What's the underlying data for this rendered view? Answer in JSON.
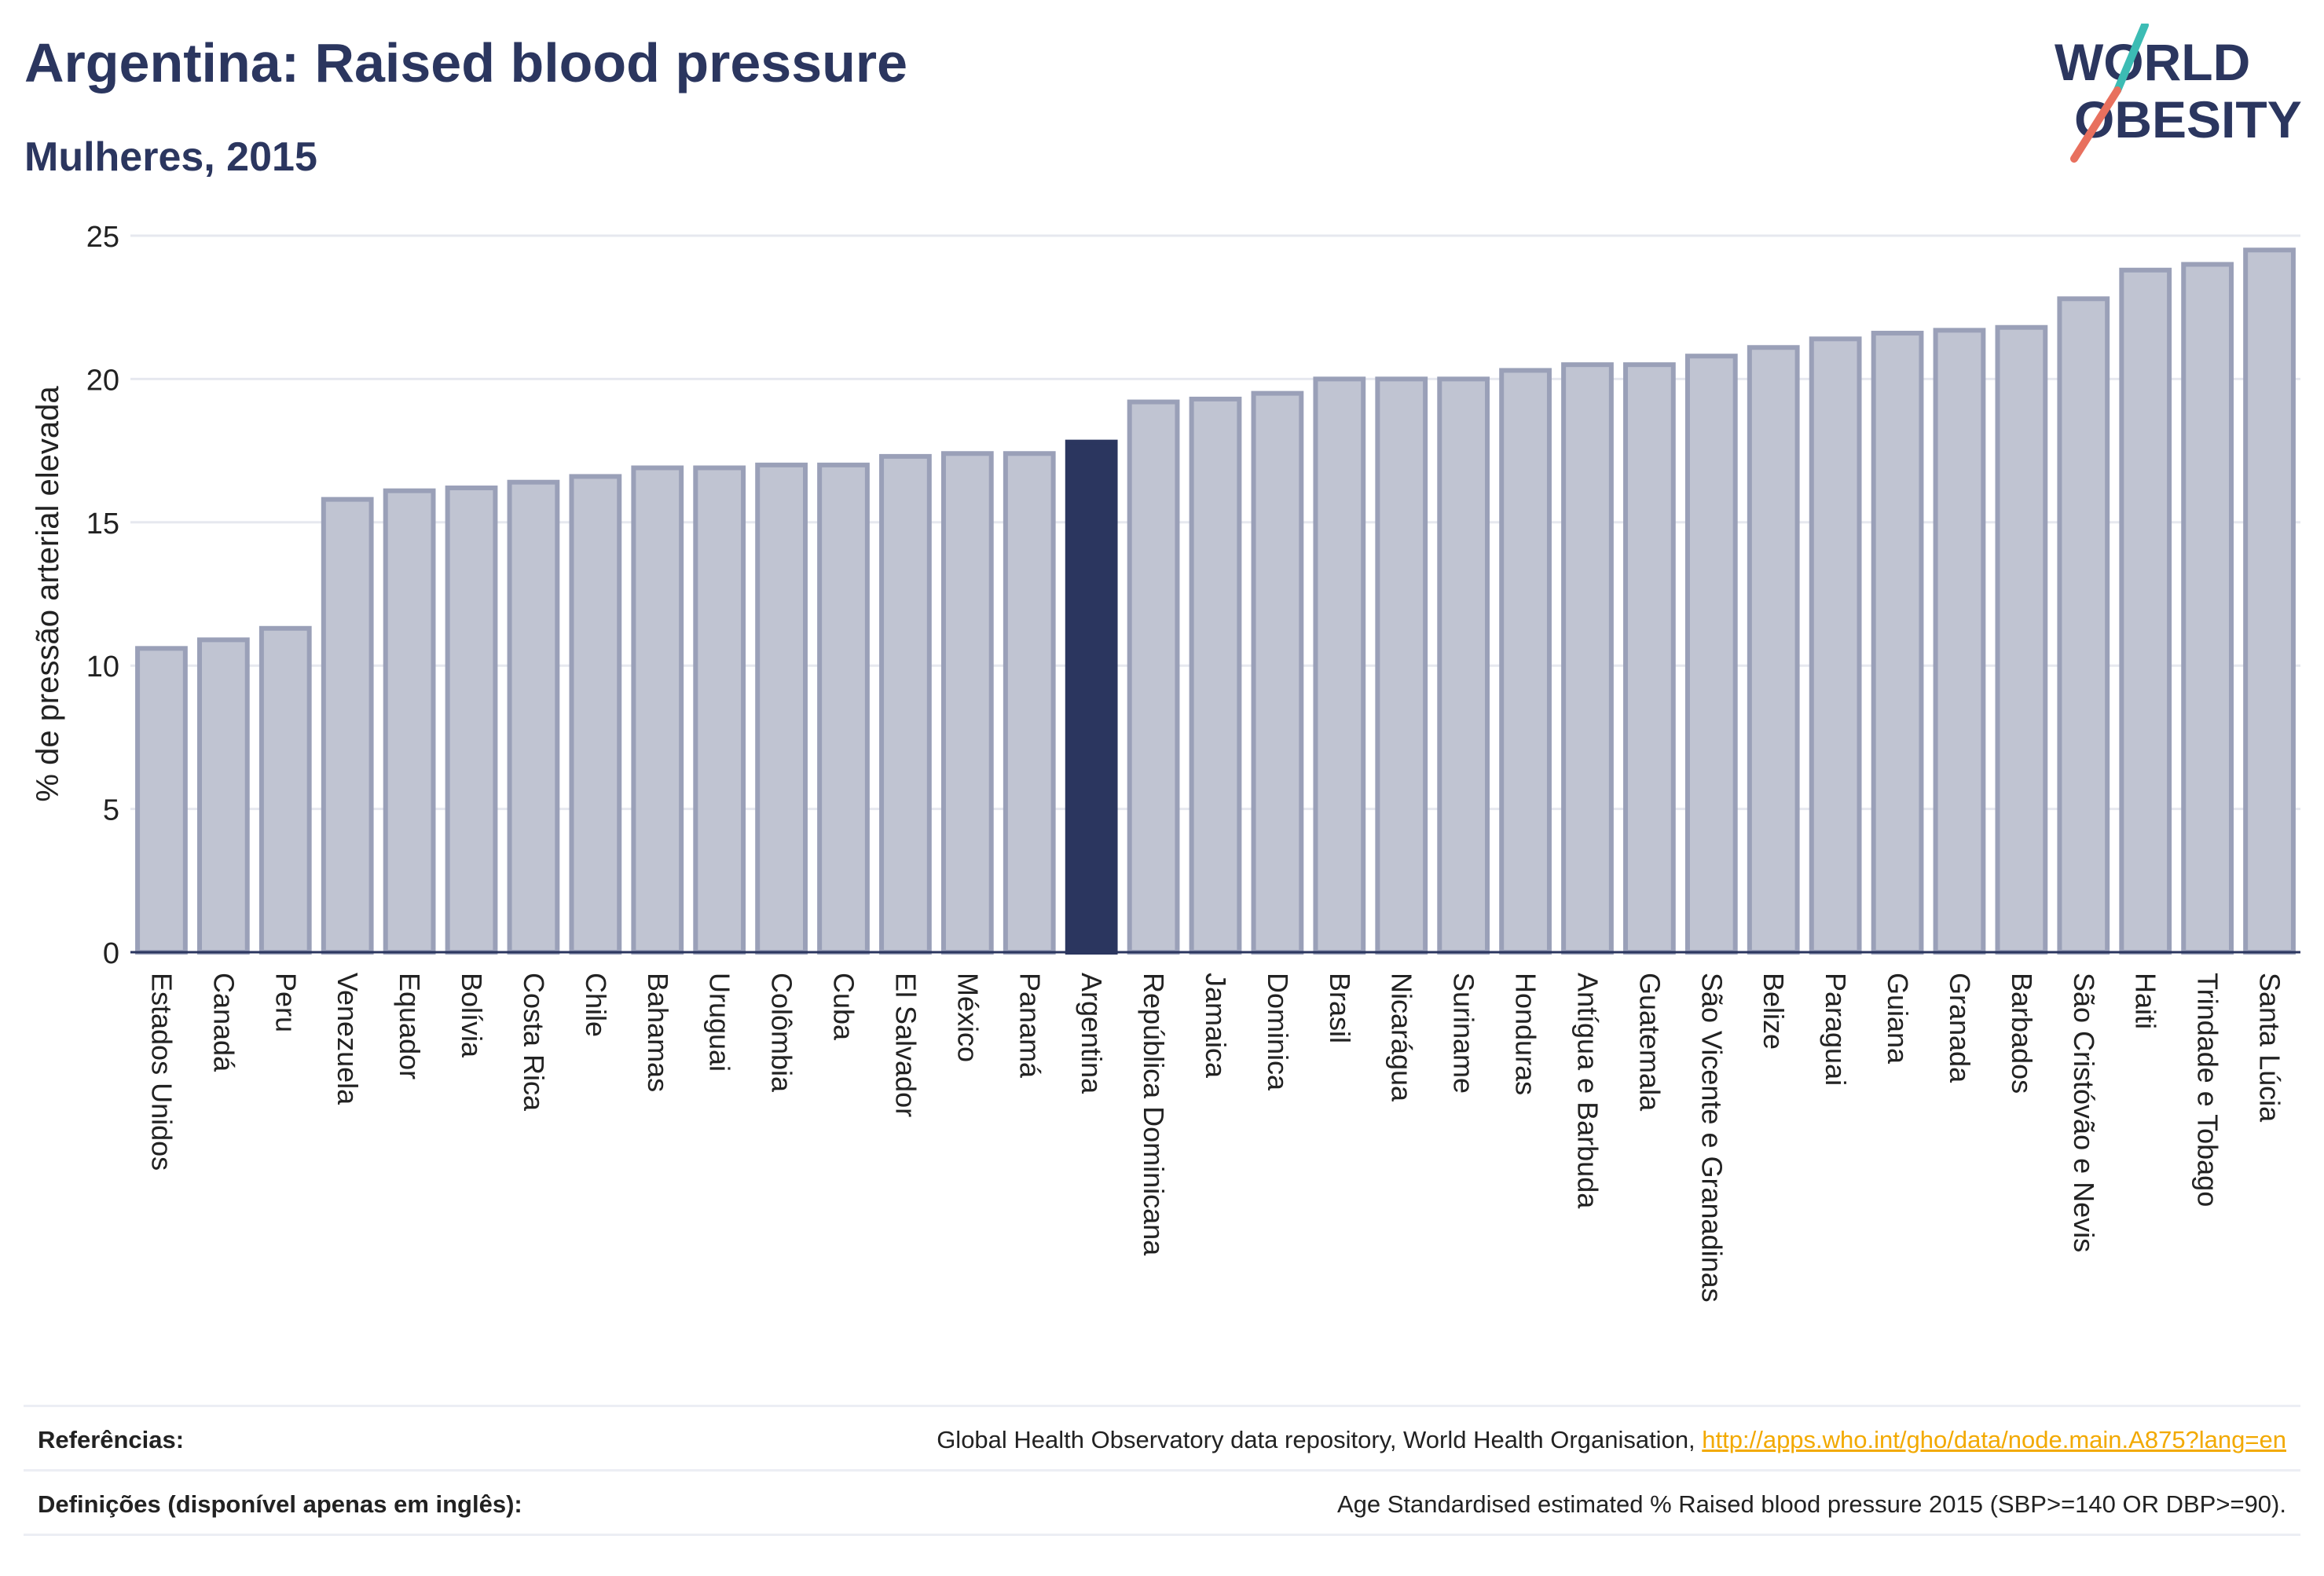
{
  "header": {
    "title": "Argentina: Raised blood pressure",
    "subtitle": "Mulheres, 2015"
  },
  "logo": {
    "line1": "WORLD",
    "line2": "OBESITY",
    "colors": {
      "text": "#2b365f",
      "slash_top": "#3cbcb4",
      "slash_bottom": "#e8705e"
    }
  },
  "colors": {
    "bar_fill": "#c0c4d2",
    "bar_stroke": "#9aa0b8",
    "highlight": "#2b365f",
    "axis_text": "#222222",
    "grid": "#e6e8ef"
  },
  "chart_data": {
    "type": "bar",
    "ylabel": "% de pressão arterial elevada",
    "ylim": [
      0,
      25
    ],
    "yticks": [
      0,
      5,
      10,
      15,
      20,
      25
    ],
    "grid": true,
    "highlight": "Argentina",
    "categories": [
      "Estados Unidos",
      "Canadá",
      "Peru",
      "Venezuela",
      "Equador",
      "Bolívia",
      "Costa Rica",
      "Chile",
      "Bahamas",
      "Uruguai",
      "Colômbia",
      "Cuba",
      "El Salvador",
      "México",
      "Panamá",
      "Argentina",
      "República Dominicana",
      "Jamaica",
      "Dominica",
      "Brasil",
      "Nicarágua",
      "Suriname",
      "Honduras",
      "Antígua e Barbuda",
      "Guatemala",
      "São Vicente e Granadinas",
      "Belize",
      "Paraguai",
      "Guiana",
      "Granada",
      "Barbados",
      "São Cristóvão e Nevis",
      "Haiti",
      "Trindade e Tobago",
      "Santa Lúcia"
    ],
    "values": [
      10.6,
      10.9,
      11.3,
      15.8,
      16.1,
      16.2,
      16.4,
      16.6,
      16.9,
      16.9,
      17.0,
      17.0,
      17.3,
      17.4,
      17.4,
      17.8,
      19.2,
      19.3,
      19.5,
      20.0,
      20.0,
      20.0,
      20.3,
      20.5,
      20.5,
      20.8,
      21.1,
      21.4,
      21.6,
      21.7,
      21.8,
      22.8,
      23.8,
      24.0,
      24.5
    ]
  },
  "footer": {
    "references_label": "Referências:",
    "references_text": "Global Health Observatory data repository, World Health Organisation, ",
    "references_link": "http://apps.who.int/gho/data/node.main.A875?lang=en",
    "definitions_label": "Definições (disponível apenas em inglês):",
    "definitions_text": "Age Standardised estimated % Raised blood pressure 2015 (SBP>=140 OR DBP>=90)."
  }
}
